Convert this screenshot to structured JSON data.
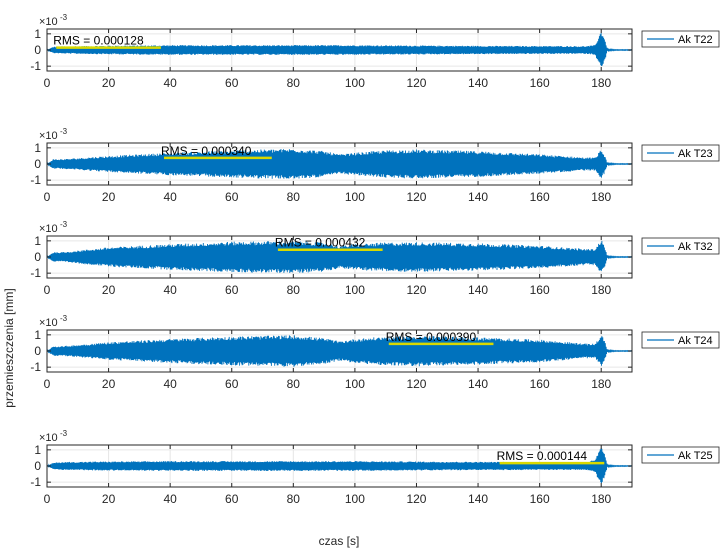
{
  "figure": {
    "ylabel": "przemieszczenia [mm]",
    "xlabel": "czas [s]",
    "exponent": "×10",
    "exponent_power": "-3"
  },
  "colors": {
    "signal": "#0072BD",
    "rms_line": "#D9D900",
    "grid": "#E6E6E6",
    "axis": "#262626"
  },
  "chart_data": [
    {
      "type": "line",
      "series": [
        {
          "name": "Ak T22",
          "rms": 0.000128
        }
      ],
      "rms_label": "RMS = 0.000128",
      "rms_segment": {
        "x": [
          3,
          37
        ],
        "y": 0.00015
      },
      "envelope": {
        "t": [
          0,
          2,
          5,
          20,
          40,
          60,
          80,
          100,
          120,
          140,
          160,
          175,
          178,
          180,
          181,
          182,
          185
        ],
        "amp": [
          0.0,
          0.0002,
          0.00023,
          0.00027,
          0.0003,
          0.0003,
          0.0003,
          0.0003,
          0.00028,
          0.00026,
          0.00025,
          0.00024,
          0.0003,
          0.0012,
          0.0008,
          5e-05,
          2e-05
        ]
      },
      "xlim": [
        0,
        190
      ],
      "ylim": [
        -0.0013,
        0.0013
      ],
      "xticks": [
        0,
        20,
        40,
        60,
        80,
        100,
        120,
        140,
        160,
        180
      ],
      "yticks": [
        -1,
        0,
        1
      ]
    },
    {
      "type": "line",
      "series": [
        {
          "name": "Ak T23",
          "rms": 0.00034
        }
      ],
      "rms_label": "RMS = 0.000340",
      "rms_segment": {
        "x": [
          38,
          73
        ],
        "y": 0.00038
      },
      "envelope": {
        "t": [
          0,
          2,
          5,
          20,
          40,
          60,
          80,
          90,
          95,
          100,
          110,
          120,
          140,
          160,
          175,
          178,
          180,
          181,
          182,
          185
        ],
        "amp": [
          0.0,
          0.0003,
          0.0003,
          0.0005,
          0.0007,
          0.00085,
          0.00095,
          0.0008,
          0.0006,
          0.0007,
          0.00085,
          0.0009,
          0.0008,
          0.0006,
          0.0004,
          0.0004,
          0.0009,
          0.0006,
          5e-05,
          2e-05
        ]
      },
      "xlim": [
        0,
        190
      ],
      "ylim": [
        -0.0013,
        0.0013
      ],
      "xticks": [
        0,
        20,
        40,
        60,
        80,
        100,
        120,
        140,
        160,
        180
      ],
      "yticks": [
        -1,
        0,
        1
      ]
    },
    {
      "type": "line",
      "series": [
        {
          "name": "Ak T32",
          "rms": 0.000432
        }
      ],
      "rms_label": "RMS = 0.000432",
      "rms_segment": {
        "x": [
          75,
          109
        ],
        "y": 0.00045
      },
      "envelope": {
        "t": [
          0,
          2,
          5,
          20,
          40,
          60,
          80,
          90,
          95,
          100,
          110,
          120,
          140,
          160,
          175,
          178,
          180,
          181,
          182,
          185
        ],
        "amp": [
          0.0,
          0.0003,
          0.0003,
          0.0006,
          0.0008,
          0.00095,
          0.001,
          0.0009,
          0.0007,
          0.0008,
          0.0009,
          0.00092,
          0.00085,
          0.0007,
          0.0005,
          0.0005,
          0.0011,
          0.0007,
          5e-05,
          2e-05
        ]
      },
      "xlim": [
        0,
        190
      ],
      "ylim": [
        -0.0013,
        0.0013
      ],
      "xticks": [
        0,
        20,
        40,
        60,
        80,
        100,
        120,
        140,
        160,
        180
      ],
      "yticks": [
        -1,
        0,
        1
      ]
    },
    {
      "type": "line",
      "series": [
        {
          "name": "Ak T24",
          "rms": 0.00039
        }
      ],
      "rms_label": "RMS = 0.000390",
      "rms_segment": {
        "x": [
          111,
          145
        ],
        "y": 0.00044
      },
      "envelope": {
        "t": [
          0,
          2,
          5,
          20,
          40,
          60,
          80,
          90,
          95,
          100,
          110,
          120,
          140,
          160,
          175,
          178,
          180,
          181,
          182,
          185
        ],
        "amp": [
          0.0,
          0.0003,
          0.0003,
          0.00055,
          0.00075,
          0.0009,
          0.00098,
          0.0008,
          0.0006,
          0.00075,
          0.0009,
          0.00095,
          0.00085,
          0.0007,
          0.00045,
          0.00045,
          0.001,
          0.0007,
          5e-05,
          2e-05
        ]
      },
      "xlim": [
        0,
        190
      ],
      "ylim": [
        -0.0013,
        0.0013
      ],
      "xticks": [
        0,
        20,
        40,
        60,
        80,
        100,
        120,
        140,
        160,
        180
      ],
      "yticks": [
        -1,
        0,
        1
      ]
    },
    {
      "type": "line",
      "series": [
        {
          "name": "Ak T25",
          "rms": 0.000144
        }
      ],
      "rms_label": "RMS = 0.000144",
      "rms_segment": {
        "x": [
          147,
          181
        ],
        "y": 0.00018
      },
      "envelope": {
        "t": [
          0,
          2,
          5,
          20,
          40,
          60,
          80,
          100,
          120,
          140,
          160,
          175,
          178,
          180,
          181,
          182,
          185
        ],
        "amp": [
          0.0,
          0.0002,
          0.00025,
          0.00028,
          0.0003,
          0.0003,
          0.0003,
          0.0003,
          0.00028,
          0.00026,
          0.00025,
          0.00025,
          0.0004,
          0.0012,
          0.0008,
          5e-05,
          2e-05
        ]
      },
      "xlim": [
        0,
        190
      ],
      "ylim": [
        -0.0013,
        0.0013
      ],
      "xticks": [
        0,
        20,
        40,
        60,
        80,
        100,
        120,
        140,
        160,
        180
      ],
      "yticks": [
        -1,
        0,
        1
      ]
    }
  ]
}
